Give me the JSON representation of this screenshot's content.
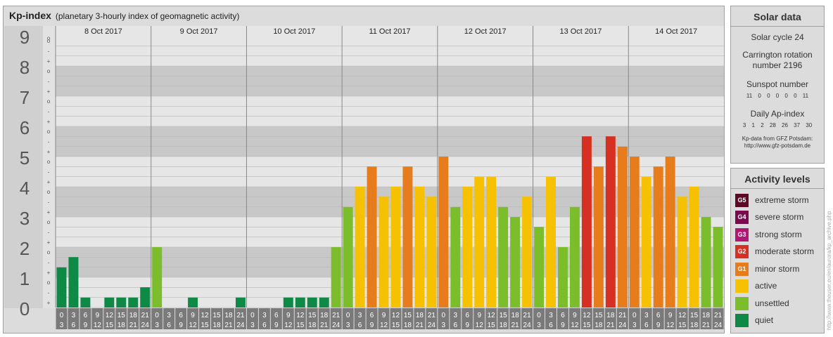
{
  "header": {
    "title": "Kp-index",
    "subtitle": "(planetary 3-hourly index of geomagnetic activity)"
  },
  "chart_data": {
    "type": "bar",
    "days": [
      "8 Oct 2017",
      "9 Oct 2017",
      "10 Oct 2017",
      "11 Oct 2017",
      "12 Oct 2017",
      "13 Oct 2017",
      "14 Oct 2017"
    ],
    "interval_start_labels": [
      "0",
      "3",
      "6",
      "9",
      "12",
      "15",
      "18",
      "21"
    ],
    "interval_end_labels": [
      "3",
      "6",
      "9",
      "12",
      "15",
      "18",
      "21",
      "24"
    ],
    "y_major_labels": [
      "0",
      "1",
      "2",
      "3",
      "4",
      "5",
      "6",
      "7",
      "8",
      "9"
    ],
    "y_minor_labels": [
      "+",
      "-",
      "o"
    ],
    "ylim": [
      0,
      9
    ],
    "values": [
      1.33,
      1.67,
      0.33,
      0.0,
      0.33,
      0.33,
      0.33,
      0.67,
      2.0,
      0.0,
      0.0,
      0.33,
      0.0,
      0.0,
      0.0,
      0.33,
      0.0,
      0.0,
      0.0,
      0.33,
      0.33,
      0.33,
      0.33,
      2.0,
      3.33,
      4.0,
      4.67,
      3.67,
      4.0,
      4.67,
      4.0,
      3.67,
      5.0,
      3.33,
      4.0,
      4.33,
      4.33,
      3.33,
      3.0,
      3.67,
      2.67,
      4.33,
      2.0,
      3.33,
      5.67,
      4.67,
      5.67,
      5.33,
      5.0,
      4.33,
      4.67,
      5.0,
      3.67,
      4.0,
      3.0,
      2.67
    ]
  },
  "solar": {
    "title": "Solar data",
    "cycle": "Solar cycle 24",
    "carrington_line1": "Carrington rotation",
    "carrington_line2": "number 2196",
    "sunspot_title": "Sunspot number",
    "sunspot_values": "11 0 0 0 0 0 11",
    "ap_title": "Daily Ap-index",
    "ap_values": "3 1 2 28 26 37 30",
    "credit_line1": "Kp-data from GFZ Potsdam:",
    "credit_line2": "http://www.gfz-potsdam.de"
  },
  "activity": {
    "title": "Activity levels",
    "levels": [
      {
        "code": "G5",
        "label": "extreme storm",
        "color": "#5a0a26"
      },
      {
        "code": "G4",
        "label": "severe storm",
        "color": "#7a0a4e"
      },
      {
        "code": "G3",
        "label": "strong storm",
        "color": "#b01873"
      },
      {
        "code": "G2",
        "label": "moderate storm",
        "color": "#d53021"
      },
      {
        "code": "G1",
        "label": "minor storm",
        "color": "#e67c1b"
      },
      {
        "code": "",
        "label": "active",
        "color": "#f6c100"
      },
      {
        "code": "",
        "label": "unsettled",
        "color": "#7cbd2c"
      },
      {
        "code": "",
        "label": "quiet",
        "color": "#0f8a46"
      }
    ]
  },
  "side_text": "http://www.theuser.eu/en/aurora/kp_archive.php"
}
